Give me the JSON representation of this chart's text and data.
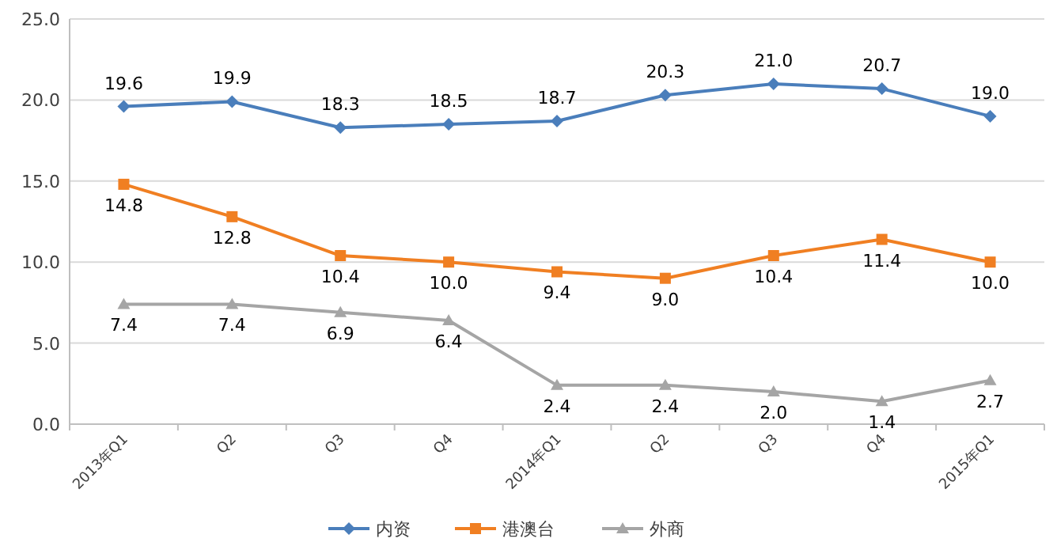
{
  "chart_data": {
    "type": "line",
    "categories": [
      "2013年Q1",
      "Q2",
      "Q3",
      "Q4",
      "2014年Q1",
      "Q2",
      "Q3",
      "Q4",
      "2015年Q1"
    ],
    "ylim": [
      0,
      25
    ],
    "yticks": [
      {
        "value": 0,
        "label": "0.0"
      },
      {
        "value": 5,
        "label": "5.0"
      },
      {
        "value": 10,
        "label": "10.0"
      },
      {
        "value": 15,
        "label": "15.0"
      },
      {
        "value": 20,
        "label": "20.0"
      },
      {
        "value": 25,
        "label": "25.0"
      }
    ],
    "grid": "y",
    "legend": "bottom",
    "series": [
      {
        "name": "内资",
        "color": "#4a7ebb",
        "marker": "diamond",
        "values": [
          19.6,
          19.9,
          18.3,
          18.5,
          18.7,
          20.3,
          21.0,
          20.7,
          19.0
        ],
        "value_labels": [
          "19.6",
          "19.9",
          "18.3",
          "18.5",
          "18.7",
          "20.3",
          "21.0",
          "20.7",
          "19.0"
        ]
      },
      {
        "name": "港澳台",
        "color": "#f07f22",
        "marker": "square",
        "values": [
          14.8,
          12.8,
          10.4,
          10.0,
          9.4,
          9.0,
          10.4,
          11.4,
          10.0
        ],
        "value_labels": [
          "14.8",
          "12.8",
          "10.4",
          "10.0",
          "9.4",
          "9.0",
          "10.4",
          "11.4",
          "10.0"
        ]
      },
      {
        "name": "外商",
        "color": "#a5a5a5",
        "marker": "triangle",
        "values": [
          7.4,
          7.4,
          6.9,
          6.4,
          2.4,
          2.4,
          2.0,
          1.4,
          2.7
        ],
        "value_labels": [
          "7.4",
          "7.4",
          "6.9",
          "6.4",
          "2.4",
          "2.4",
          "2.0",
          "1.4",
          "2.7"
        ]
      }
    ]
  }
}
